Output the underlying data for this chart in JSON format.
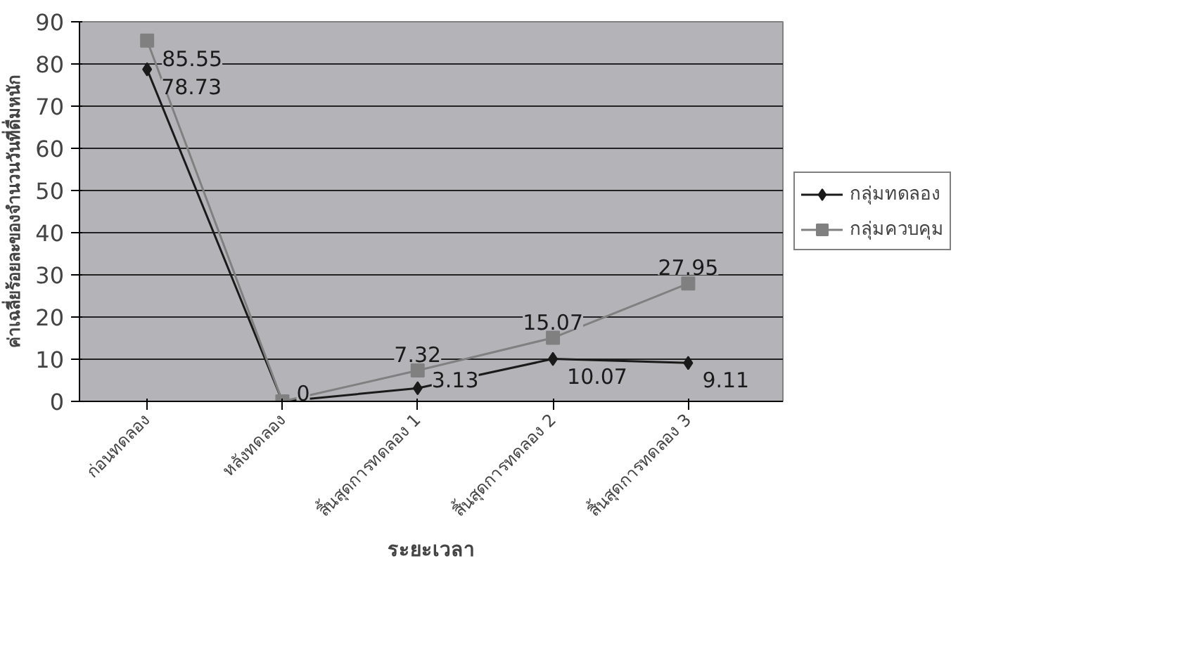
{
  "chart_data": {
    "type": "line",
    "xlabel": "ระยะเวลา",
    "ylabel": "ค่าเฉลี่ยร้อยละของจำนวนวันที่ดื่มหนัก",
    "categories": [
      "ก่อนทดลอง",
      "หลังทดลอง",
      "สิ้นสุดการทดลอง 1",
      "สิ้นสุดการทดลอง 2",
      "สิ้นสุดการทดลอง 3"
    ],
    "series": [
      {
        "name": "กลุ่มทดลอง",
        "color": "#1a1a1a",
        "marker": "diamond",
        "values": [
          78.73,
          0,
          3.13,
          10.07,
          9.11
        ],
        "value_labels": [
          "78.73",
          "0",
          "3.13",
          "10.07",
          "9.11"
        ]
      },
      {
        "name": "กลุ่มควบคุม",
        "color": "#808080",
        "marker": "square",
        "values": [
          85.55,
          0,
          7.32,
          15.07,
          27.95
        ],
        "value_labels": [
          "85.55",
          null,
          "7.32",
          "15.07",
          "27.95"
        ]
      }
    ],
    "ylim": [
      0,
      90
    ],
    "yticks": [
      0,
      10,
      20,
      30,
      40,
      50,
      60,
      70,
      80,
      90
    ],
    "grid": "y",
    "legend": "right",
    "line_style": "solid"
  }
}
